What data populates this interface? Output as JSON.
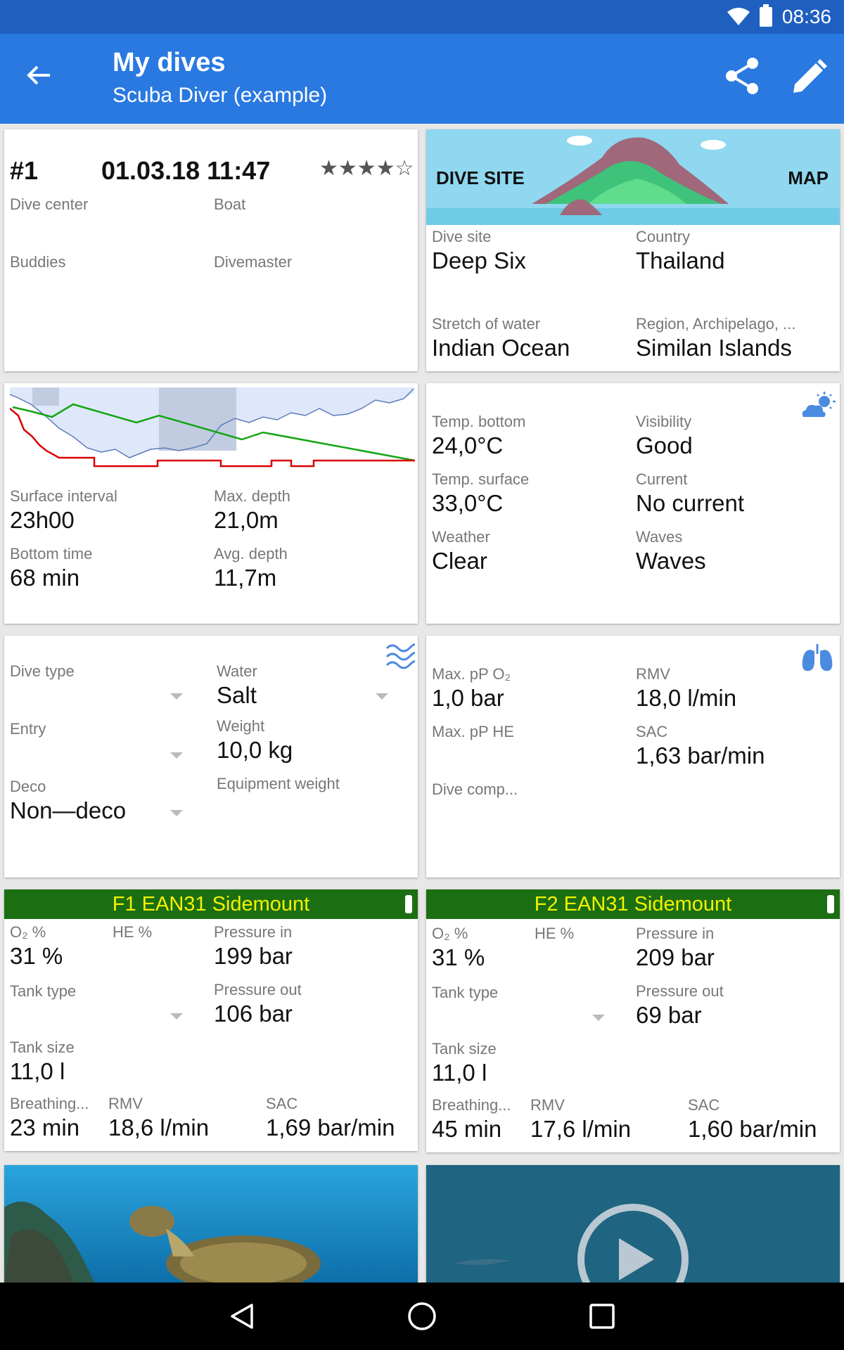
{
  "status": {
    "time": "08:36"
  },
  "appbar": {
    "title": "My dives",
    "subtitle": "Scuba Diver (example)"
  },
  "dive": {
    "number": "#1",
    "datetime": "01.03.18 11:47",
    "rating": "★★★★☆",
    "dive_center_label": "Dive center",
    "boat_label": "Boat",
    "buddies_label": "Buddies",
    "divemaster_label": "Divemaster"
  },
  "site": {
    "header_label": "DIVE SITE",
    "map_label": "MAP",
    "dive_site_label": "Dive site",
    "dive_site": "Deep Six",
    "country_label": "Country",
    "country": "Thailand",
    "stretch_label": "Stretch of water",
    "stretch": "Indian Ocean",
    "region_label": "Region, Archipelago, ...",
    "region": "Similan Islands"
  },
  "profile": {
    "surface_interval_label": "Surface interval",
    "surface_interval": "23h00",
    "max_depth_label": "Max. depth",
    "max_depth": "21,0m",
    "bottom_time_label": "Bottom time",
    "bottom_time": "68 min",
    "avg_depth_label": "Avg. depth",
    "avg_depth": "11,7m"
  },
  "conditions": {
    "temp_bottom_label": "Temp. bottom",
    "temp_bottom": "24,0°C",
    "visibility_label": "Visibility",
    "visibility": "Good",
    "temp_surface_label": "Temp. surface",
    "temp_surface": "33,0°C",
    "current_label": "Current",
    "current": "No current",
    "weather_label": "Weather",
    "weather": "Clear",
    "waves_label": "Waves",
    "waves": "Waves"
  },
  "divetype": {
    "dive_type_label": "Dive type",
    "water_label": "Water",
    "water": "Salt",
    "entry_label": "Entry",
    "weight_label": "Weight",
    "weight": "10,0 kg",
    "deco_label": "Deco",
    "deco": "Non—deco",
    "equipment_weight_label": "Equipment weight"
  },
  "gas": {
    "max_ppo2_label": "Max. pP O₂",
    "max_ppo2": "1,0 bar",
    "rmv_label": "RMV",
    "rmv": "18,0 l/min",
    "max_pphe_label": "Max. pP HE",
    "sac_label": "SAC",
    "sac": "1,63 bar/min",
    "dive_comp_label": "Dive comp..."
  },
  "tanks": [
    {
      "title": "F1 EAN31 Sidemount",
      "o2_label": "O₂ %",
      "o2": "31 %",
      "he_label": "HE %",
      "pressure_in_label": "Pressure in",
      "pressure_in": "199 bar",
      "tank_type_label": "Tank type",
      "pressure_out_label": "Pressure out",
      "pressure_out": "106 bar",
      "tank_size_label": "Tank size",
      "tank_size": "11,0 l",
      "breathing_label": "Breathing...",
      "breathing": "23 min",
      "rmv_label": "RMV",
      "rmv": "18,6 l/min",
      "sac_label": "SAC",
      "sac": "1,69 bar/min"
    },
    {
      "title": "F2 EAN31 Sidemount",
      "o2_label": "O₂ %",
      "o2": "31 %",
      "he_label": "HE %",
      "pressure_in_label": "Pressure in",
      "pressure_in": "209 bar",
      "tank_type_label": "Tank type",
      "pressure_out_label": "Pressure out",
      "pressure_out": "69 bar",
      "tank_size_label": "Tank size",
      "tank_size": "11,0 l",
      "breathing_label": "Breathing...",
      "breathing": "45 min",
      "rmv_label": "RMV",
      "rmv": "17,6 l/min",
      "sac_label": "SAC",
      "sac": "1,60 bar/min"
    }
  ],
  "colors": {
    "statusbar": "#1e5fc0",
    "appbar": "#2979e0",
    "tank_header": "#1c6e12",
    "tank_title": "#f2f200"
  }
}
